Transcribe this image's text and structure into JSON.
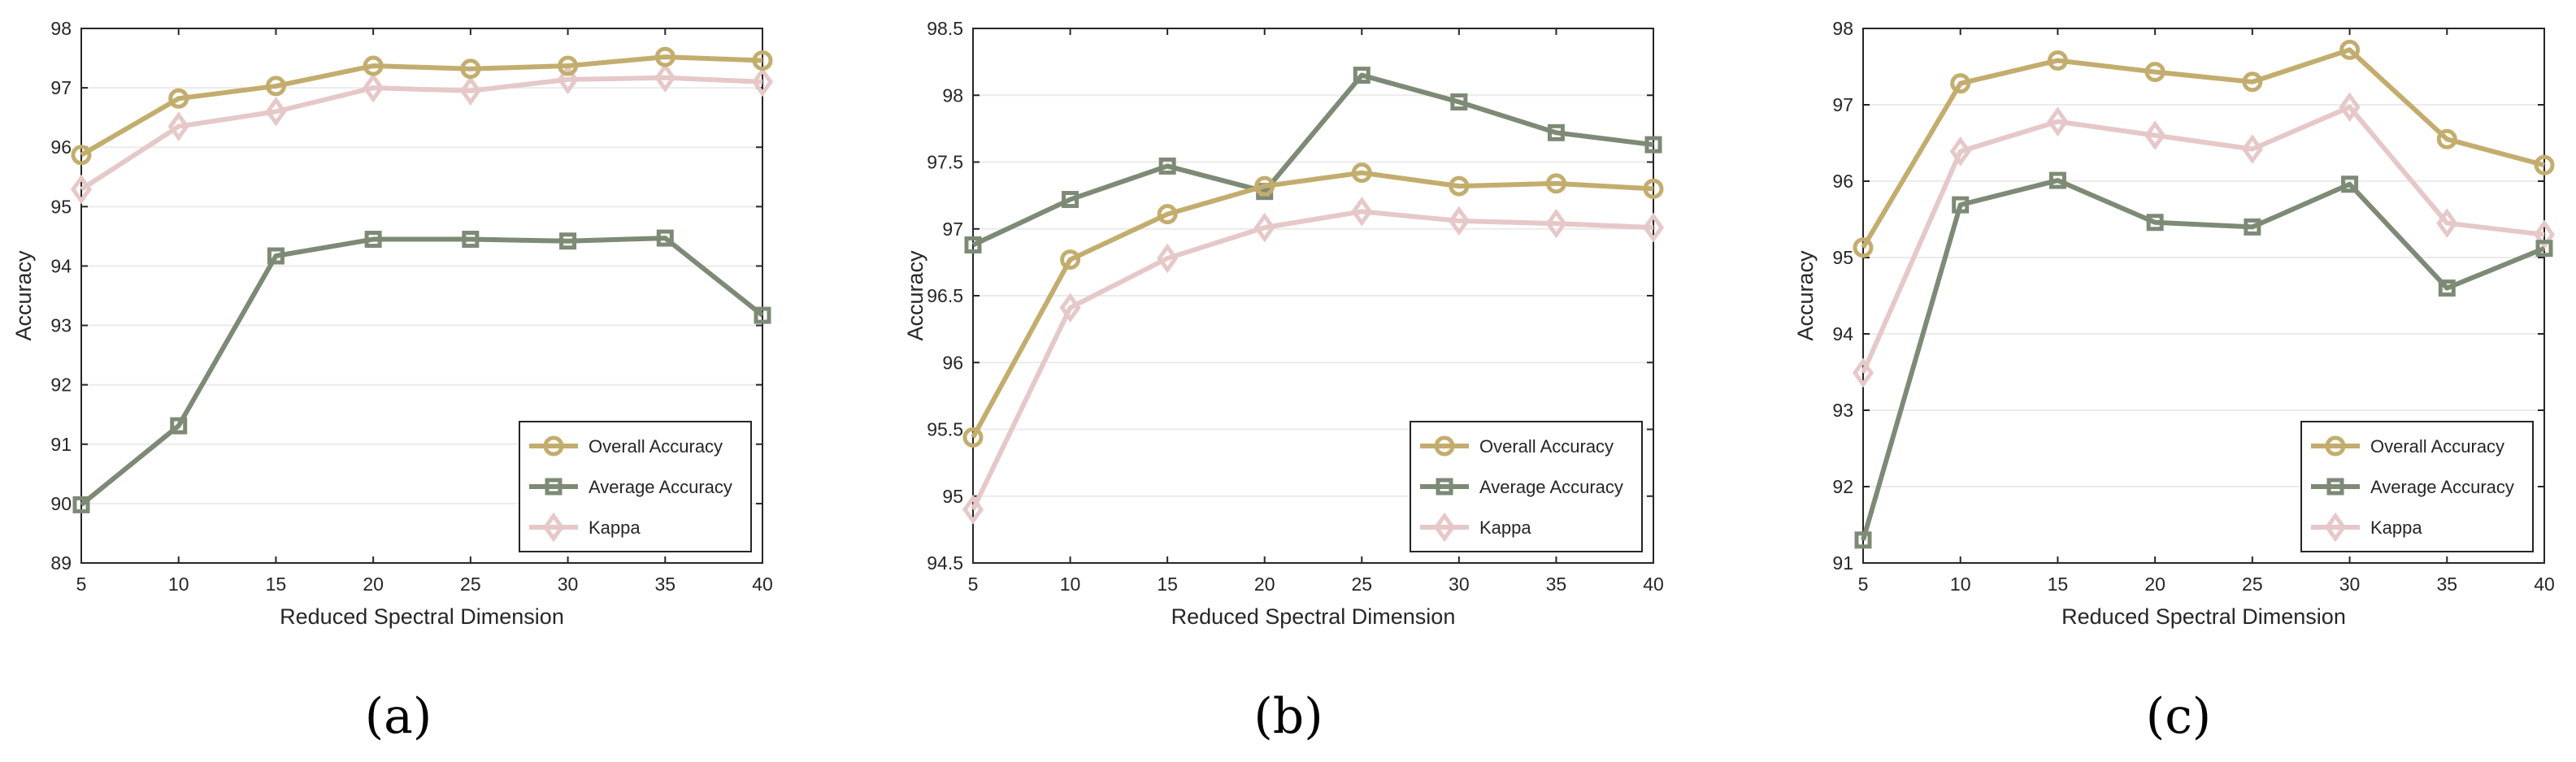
{
  "colors": {
    "overall": "#c3ad6e",
    "average": "#7d8a76",
    "kappa": "#e6c8c8",
    "grid": "#ebebeb",
    "axis": "#262626"
  },
  "legend_labels": [
    "Overall Accuracy",
    "Average Accuracy",
    "Kappa"
  ],
  "chart_data": [
    {
      "type": "line",
      "caption": "(a)",
      "xlabel": "Reduced Spectral Dimension",
      "ylabel": "Accuracy",
      "x": [
        5,
        10,
        15,
        20,
        25,
        30,
        35,
        40
      ],
      "xlim": [
        5,
        40
      ],
      "ylim": [
        89,
        98
      ],
      "yticks": [
        89,
        90,
        91,
        92,
        93,
        94,
        95,
        96,
        97,
        98
      ],
      "ytick_labels": [
        "89",
        "90",
        "91",
        "92",
        "93",
        "94",
        "95",
        "96",
        "97",
        "98"
      ],
      "legend_position": "bottom-right",
      "series": [
        {
          "name": "Overall Accuracy",
          "marker": "circle",
          "values": [
            95.87,
            96.82,
            97.03,
            97.37,
            97.32,
            97.37,
            97.52,
            97.46
          ]
        },
        {
          "name": "Average Accuracy",
          "marker": "square",
          "values": [
            89.98,
            91.31,
            94.17,
            94.45,
            94.45,
            94.42,
            94.47,
            93.17
          ]
        },
        {
          "name": "Kappa",
          "marker": "diamond",
          "values": [
            95.29,
            96.35,
            96.6,
            97.0,
            96.95,
            97.14,
            97.17,
            97.1
          ]
        }
      ]
    },
    {
      "type": "line",
      "caption": "(b)",
      "xlabel": "Reduced Spectral Dimension",
      "ylabel": "Accuracy",
      "x": [
        5,
        10,
        15,
        20,
        25,
        30,
        35,
        40
      ],
      "xlim": [
        5,
        40
      ],
      "ylim": [
        94.5,
        98.5
      ],
      "yticks": [
        94.5,
        95,
        95.5,
        96,
        96.5,
        97,
        97.5,
        98,
        98.5
      ],
      "ytick_labels": [
        "94.5",
        "95",
        "95.5",
        "96",
        "96.5",
        "97",
        "97.5",
        "98",
        "98.5"
      ],
      "legend_position": "bottom-right",
      "series": [
        {
          "name": "Overall Accuracy",
          "marker": "circle",
          "values": [
            95.44,
            96.77,
            97.11,
            97.32,
            97.42,
            97.32,
            97.34,
            97.3
          ]
        },
        {
          "name": "Average Accuracy",
          "marker": "square",
          "values": [
            96.88,
            97.22,
            97.47,
            97.28,
            98.15,
            97.95,
            97.72,
            97.63
          ]
        },
        {
          "name": "Kappa",
          "marker": "diamond",
          "values": [
            94.9,
            96.41,
            96.78,
            97.01,
            97.13,
            97.06,
            97.04,
            97.01
          ]
        }
      ]
    },
    {
      "type": "line",
      "caption": "(c)",
      "xlabel": "Reduced Spectral Dimension",
      "ylabel": "Accuracy",
      "x": [
        5,
        10,
        15,
        20,
        25,
        30,
        35,
        40
      ],
      "xlim": [
        5,
        40
      ],
      "ylim": [
        91,
        98
      ],
      "yticks": [
        91,
        92,
        93,
        94,
        95,
        96,
        97,
        98
      ],
      "ytick_labels": [
        "91",
        "92",
        "93",
        "94",
        "95",
        "96",
        "97",
        "98"
      ],
      "legend_position": "bottom-right",
      "series": [
        {
          "name": "Overall Accuracy",
          "marker": "circle",
          "values": [
            95.13,
            97.28,
            97.58,
            97.43,
            97.3,
            97.72,
            96.55,
            96.21
          ]
        },
        {
          "name": "Average Accuracy",
          "marker": "square",
          "values": [
            91.3,
            95.69,
            96.01,
            95.46,
            95.4,
            95.96,
            94.6,
            95.12
          ]
        },
        {
          "name": "Kappa",
          "marker": "diamond",
          "values": [
            93.49,
            96.39,
            96.78,
            96.6,
            96.42,
            96.97,
            95.45,
            95.3
          ]
        }
      ]
    }
  ]
}
